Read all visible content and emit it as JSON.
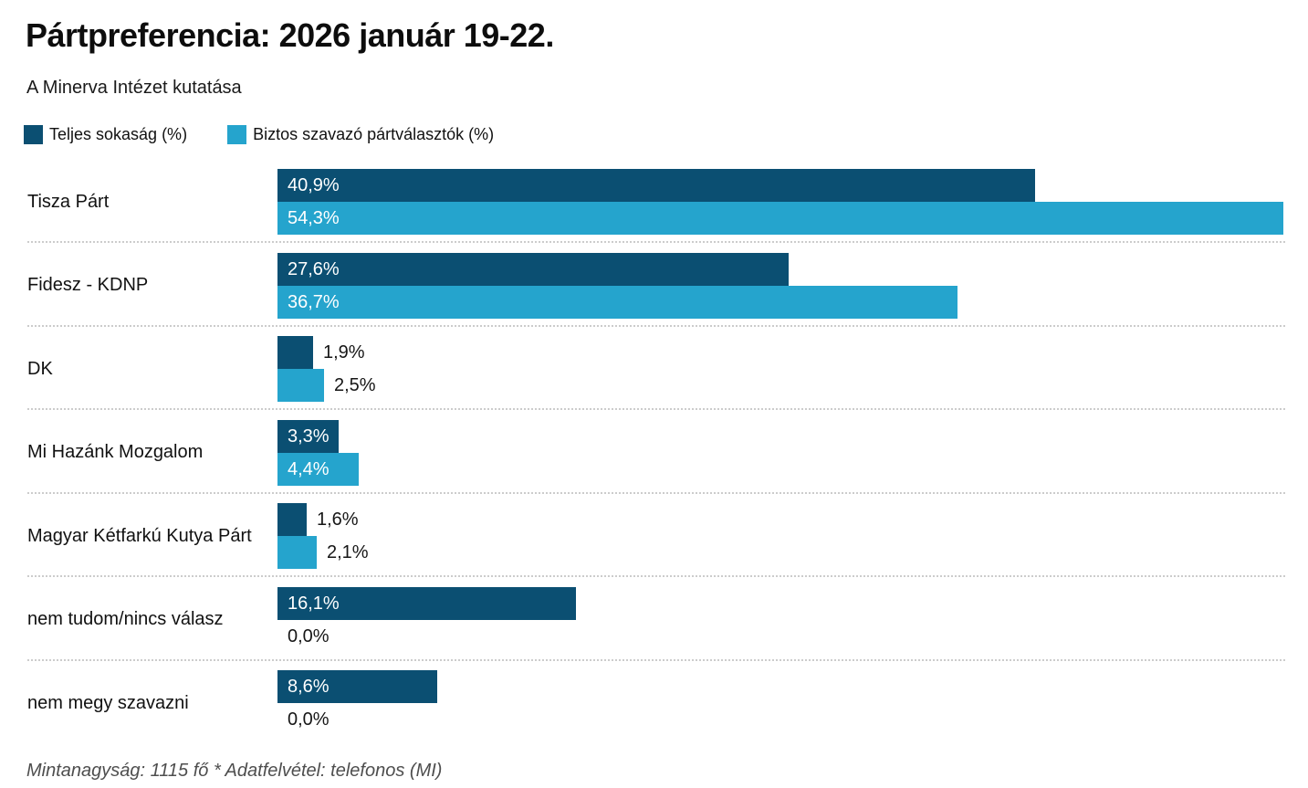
{
  "header": {
    "title": "Pártpreferencia: 2026 január 19-22.",
    "subtitle": "A Minerva Intézet kutatása"
  },
  "legend": [
    {
      "label": "Teljes sokaság (%)",
      "color": "#0b4f72"
    },
    {
      "label": "Biztos szavazó pártválasztók (%)",
      "color": "#25a4cd"
    }
  ],
  "footer": {
    "note": "Mintanagyság: 1115 fő * Adatfelvétel: telefonos (MI)"
  },
  "chart_data": {
    "type": "bar",
    "orientation": "horizontal",
    "title": "Pártpreferencia: 2026 január 19-22.",
    "subtitle": "A Minerva Intézet kutatása",
    "legend_position": "top",
    "grid": false,
    "value_suffix": "%",
    "decimal_separator": ",",
    "xlim": [
      0,
      54.3
    ],
    "categories": [
      "Tisza Párt",
      "Fidesz - KDNP",
      "DK",
      "Mi Hazánk Mozgalom",
      "Magyar Kétfarkú Kutya Párt",
      "nem tudom/nincs válasz",
      "nem megy szavazni"
    ],
    "series": [
      {
        "name": "Teljes sokaság (%)",
        "color": "#0b4f72",
        "values": [
          40.9,
          27.6,
          1.9,
          3.3,
          1.6,
          16.1,
          8.6
        ],
        "labels": [
          "40,9%",
          "27,6%",
          "1,9%",
          "3,3%",
          "1,6%",
          "16,1%",
          "8,6%"
        ]
      },
      {
        "name": "Biztos szavazó pártválasztók (%)",
        "color": "#25a4cd",
        "values": [
          54.3,
          36.7,
          2.5,
          4.4,
          2.1,
          0.0,
          0.0
        ],
        "labels": [
          "54,3%",
          "36,7%",
          "2,5%",
          "4,4%",
          "2,1%",
          "0,0%",
          "0,0%"
        ]
      }
    ]
  }
}
